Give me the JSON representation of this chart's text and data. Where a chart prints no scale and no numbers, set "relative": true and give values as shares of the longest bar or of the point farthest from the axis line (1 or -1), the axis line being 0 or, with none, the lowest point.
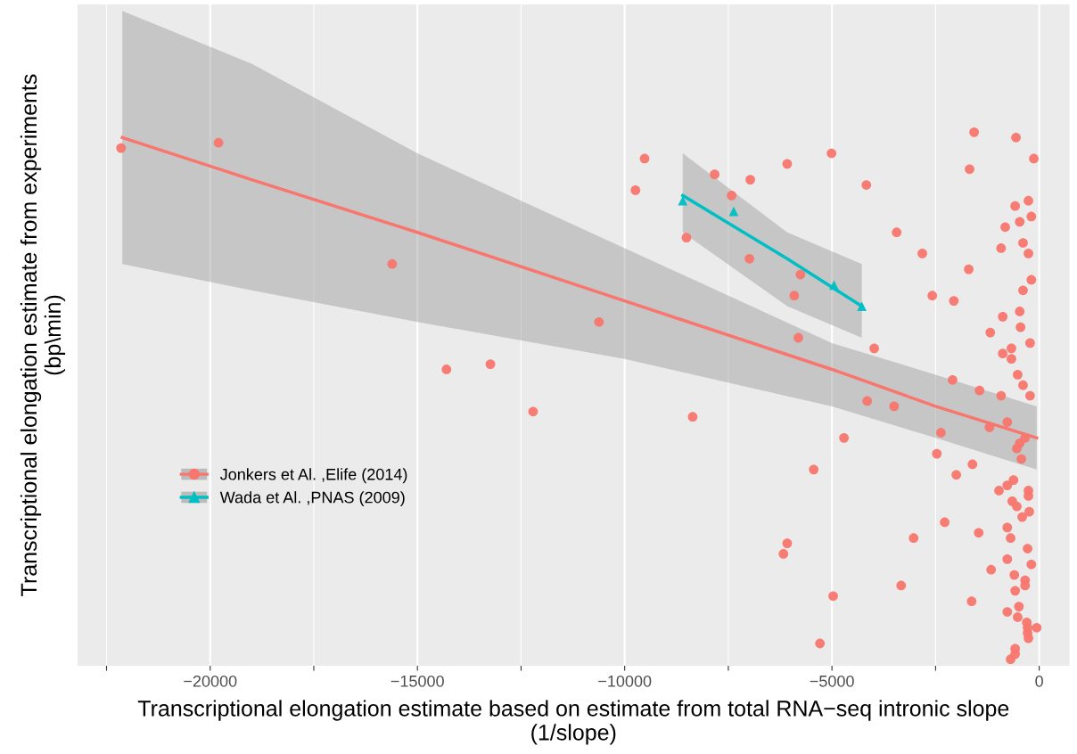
{
  "chart_data": {
    "type": "scatter",
    "relative": true,
    "xlabel": "Transcriptional elongation estimate based on estimate from total RNA−seq intronic slope\n(1/slope)",
    "ylabel": "Transcriptional elongation estimate from experiments\n(bp\\min)",
    "xlim": [
      -23200,
      730
    ],
    "xticks": [
      {
        "value": -22500,
        "label": null
      },
      {
        "value": -20000,
        "label": "−20000"
      },
      {
        "value": -17500,
        "label": null
      },
      {
        "value": -15000,
        "label": "−15000"
      },
      {
        "value": -12500,
        "label": null
      },
      {
        "value": -10000,
        "label": "−10000"
      },
      {
        "value": -7500,
        "label": null
      },
      {
        "value": -5000,
        "label": "−5000"
      },
      {
        "value": -2500,
        "label": null
      },
      0
    ],
    "tick_labels": "x",
    "grid": "x",
    "legend": "left",
    "series": [
      {
        "name": "Jonkers et Al. ,Elife (2014)",
        "marker": "circle",
        "color": "#f8766d",
        "x": [
          -1570,
          -560,
          -130,
          -1680,
          -260,
          -580,
          -470,
          -190,
          -820,
          -3440,
          -390,
          -920,
          -260,
          -2820,
          -1700,
          -190,
          -390,
          -2580,
          -2060,
          -470,
          -880,
          -450,
          -1180,
          -220,
          -670,
          -880,
          -670,
          -520,
          -390,
          -2090,
          -1440,
          -920,
          -220,
          -3500,
          -2370,
          -1200,
          -770,
          -340,
          -470,
          -540,
          -430,
          -2470,
          -1610,
          -2000,
          -620,
          -770,
          -970,
          -260,
          -260,
          -650,
          -540,
          -240,
          -410,
          -2280,
          -770,
          -690,
          -1460,
          -3030,
          -280,
          -770,
          -190,
          -1160,
          -600,
          -340,
          -340,
          -580,
          -3330,
          -1630,
          -490,
          -770,
          -520,
          -300,
          -280,
          -60,
          -280,
          -260,
          -580,
          -580,
          -690,
          -9520,
          -9740,
          -7830,
          -6970,
          -7420,
          -6080,
          -5010,
          -4170,
          -8510,
          -6990,
          -5760,
          -5910,
          -5810,
          -3980,
          -4150,
          -8360,
          -4710,
          -5440,
          -6080,
          -6170,
          -4970,
          -5290,
          -22150,
          -19800,
          -15610,
          -14300,
          -13240,
          -12210,
          -10620
        ],
        "values": [
          1.0,
          0.99,
          0.95,
          0.93,
          0.87,
          0.86,
          0.83,
          0.84,
          0.82,
          0.81,
          0.79,
          0.78,
          0.77,
          0.77,
          0.74,
          0.72,
          0.7,
          0.69,
          0.68,
          0.66,
          0.65,
          0.63,
          0.62,
          0.6,
          0.59,
          0.58,
          0.57,
          0.54,
          0.52,
          0.53,
          0.51,
          0.5,
          0.5,
          0.48,
          0.43,
          0.44,
          0.45,
          0.42,
          0.41,
          0.4,
          0.38,
          0.39,
          0.37,
          0.35,
          0.34,
          0.33,
          0.32,
          0.32,
          0.31,
          0.3,
          0.29,
          0.28,
          0.27,
          0.26,
          0.25,
          0.23,
          0.24,
          0.23,
          0.21,
          0.19,
          0.18,
          0.17,
          0.16,
          0.15,
          0.14,
          0.13,
          0.14,
          0.11,
          0.1,
          0.09,
          0.08,
          0.07,
          0.06,
          0.06,
          0.05,
          0.04,
          0.02,
          0.01,
          0.0,
          0.95,
          0.89,
          0.92,
          0.91,
          0.88,
          0.94,
          0.96,
          0.9,
          0.8,
          0.76,
          0.73,
          0.69,
          0.61,
          0.59,
          0.49,
          0.46,
          0.42,
          0.36,
          0.22,
          0.2,
          0.12,
          0.03,
          0.97,
          0.98,
          0.75,
          0.55,
          0.56,
          0.47,
          0.64
        ]
      },
      {
        "name": "Wada et Al. ,PNAS (2009)",
        "marker": "triangle",
        "color": "#00bfc4",
        "x": [
          -8600,
          -7370,
          -4950,
          -4280
        ],
        "values": [
          0.87,
          0.85,
          0.71,
          0.67
        ]
      },
      {
        "type": "line",
        "color": "#f8766d",
        "x": [
          -22120,
          -19000,
          -15000,
          -10000,
          -5000,
          -2500,
          -60
        ],
        "values": [
          0.99,
          0.91,
          0.81,
          0.68,
          0.55,
          0.48,
          0.42
        ],
        "lower": [
          0.75,
          0.7,
          0.64,
          0.57,
          0.48,
          0.42,
          0.36
        ],
        "upper": [
          1.23,
          1.13,
          0.96,
          0.78,
          0.6,
          0.54,
          0.48
        ]
      },
      {
        "type": "line",
        "color": "#00bfc4",
        "x": [
          -8600,
          -6080,
          -4280
        ],
        "values": [
          0.88,
          0.76,
          0.67
        ],
        "lower": [
          0.81,
          0.67,
          0.61
        ],
        "upper": [
          0.96,
          0.81,
          0.75
        ]
      }
    ]
  }
}
